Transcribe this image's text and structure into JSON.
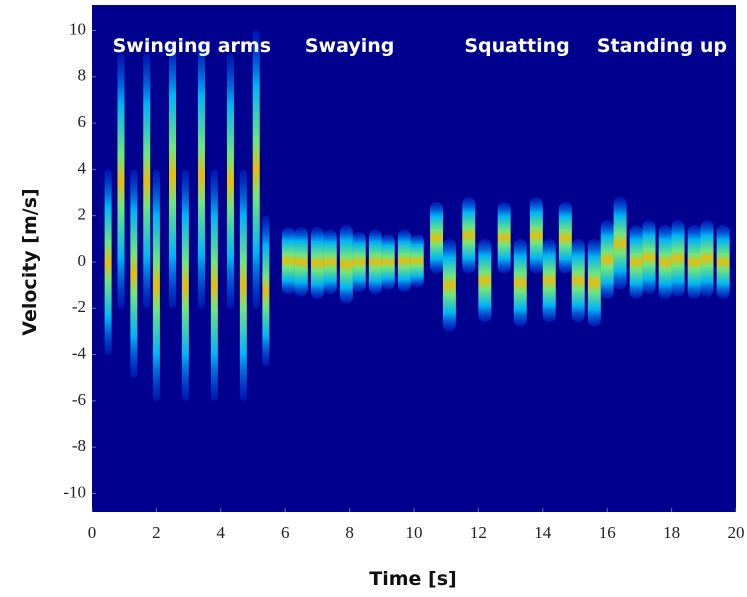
{
  "chart_data": {
    "type": "spectrogram",
    "x_label": "Time [s]",
    "y_label": "Velocity [m/s]",
    "xlim": [
      0,
      20
    ],
    "ylim": [
      -10.8,
      11.1
    ],
    "xticks": [
      0,
      2,
      4,
      6,
      8,
      10,
      12,
      14,
      16,
      18,
      20
    ],
    "yticks": [
      -10,
      -8,
      -6,
      -4,
      -2,
      0,
      2,
      4,
      6,
      8,
      10
    ],
    "background": "#00008f",
    "annotations": [
      {
        "text": "Swinging arms",
        "x": 3.1,
        "y": 9.3
      },
      {
        "text": "Swaying",
        "x": 8,
        "y": 9.3
      },
      {
        "text": "Squatting",
        "x": 13.2,
        "y": 9.3
      },
      {
        "text": "Standing up",
        "x": 17.7,
        "y": 9.3
      }
    ],
    "bursts": {
      "x": [
        0.5,
        0.9,
        1.3,
        1.7,
        2.0,
        2.5,
        2.9,
        3.4,
        3.8,
        4.3,
        4.7,
        5.1,
        5.4,
        6.1,
        6.5,
        7.0,
        7.4,
        7.9,
        8.3,
        8.8,
        9.2,
        9.7,
        10.1,
        10.7,
        11.1,
        11.7,
        12.2,
        12.8,
        13.3,
        13.8,
        14.2,
        14.7,
        15.1,
        15.6,
        16.0,
        16.4,
        16.9,
        17.3,
        17.8,
        18.2,
        18.7,
        19.1,
        19.6
      ],
      "upper": [
        4,
        9,
        4,
        9,
        4,
        9.5,
        4,
        9.5,
        4,
        9,
        4,
        10,
        2,
        1.5,
        1.5,
        1.5,
        1.4,
        1.6,
        1.3,
        1.4,
        1.2,
        1.4,
        1.2,
        2.6,
        1.0,
        2.8,
        1.0,
        2.6,
        1.0,
        2.8,
        1.0,
        2.6,
        1.0,
        1.0,
        1.8,
        2.8,
        1.6,
        1.8,
        1.6,
        1.8,
        1.6,
        1.8,
        1.6
      ],
      "lower": [
        -4,
        -2,
        -5,
        -2,
        -6,
        -2,
        -6,
        -2,
        -6,
        -2,
        -6,
        -2,
        -4.5,
        -1.4,
        -1.5,
        -1.6,
        -1.4,
        -1.8,
        -1.3,
        -1.4,
        -1.2,
        -1.3,
        -1.1,
        -0.5,
        -3.0,
        -0.5,
        -2.6,
        -0.5,
        -2.8,
        -0.5,
        -2.6,
        -0.5,
        -2.6,
        -2.8,
        -1.6,
        -1.2,
        -1.6,
        -1.4,
        -1.6,
        -1.5,
        -1.6,
        -1.5,
        -1.6
      ]
    }
  }
}
